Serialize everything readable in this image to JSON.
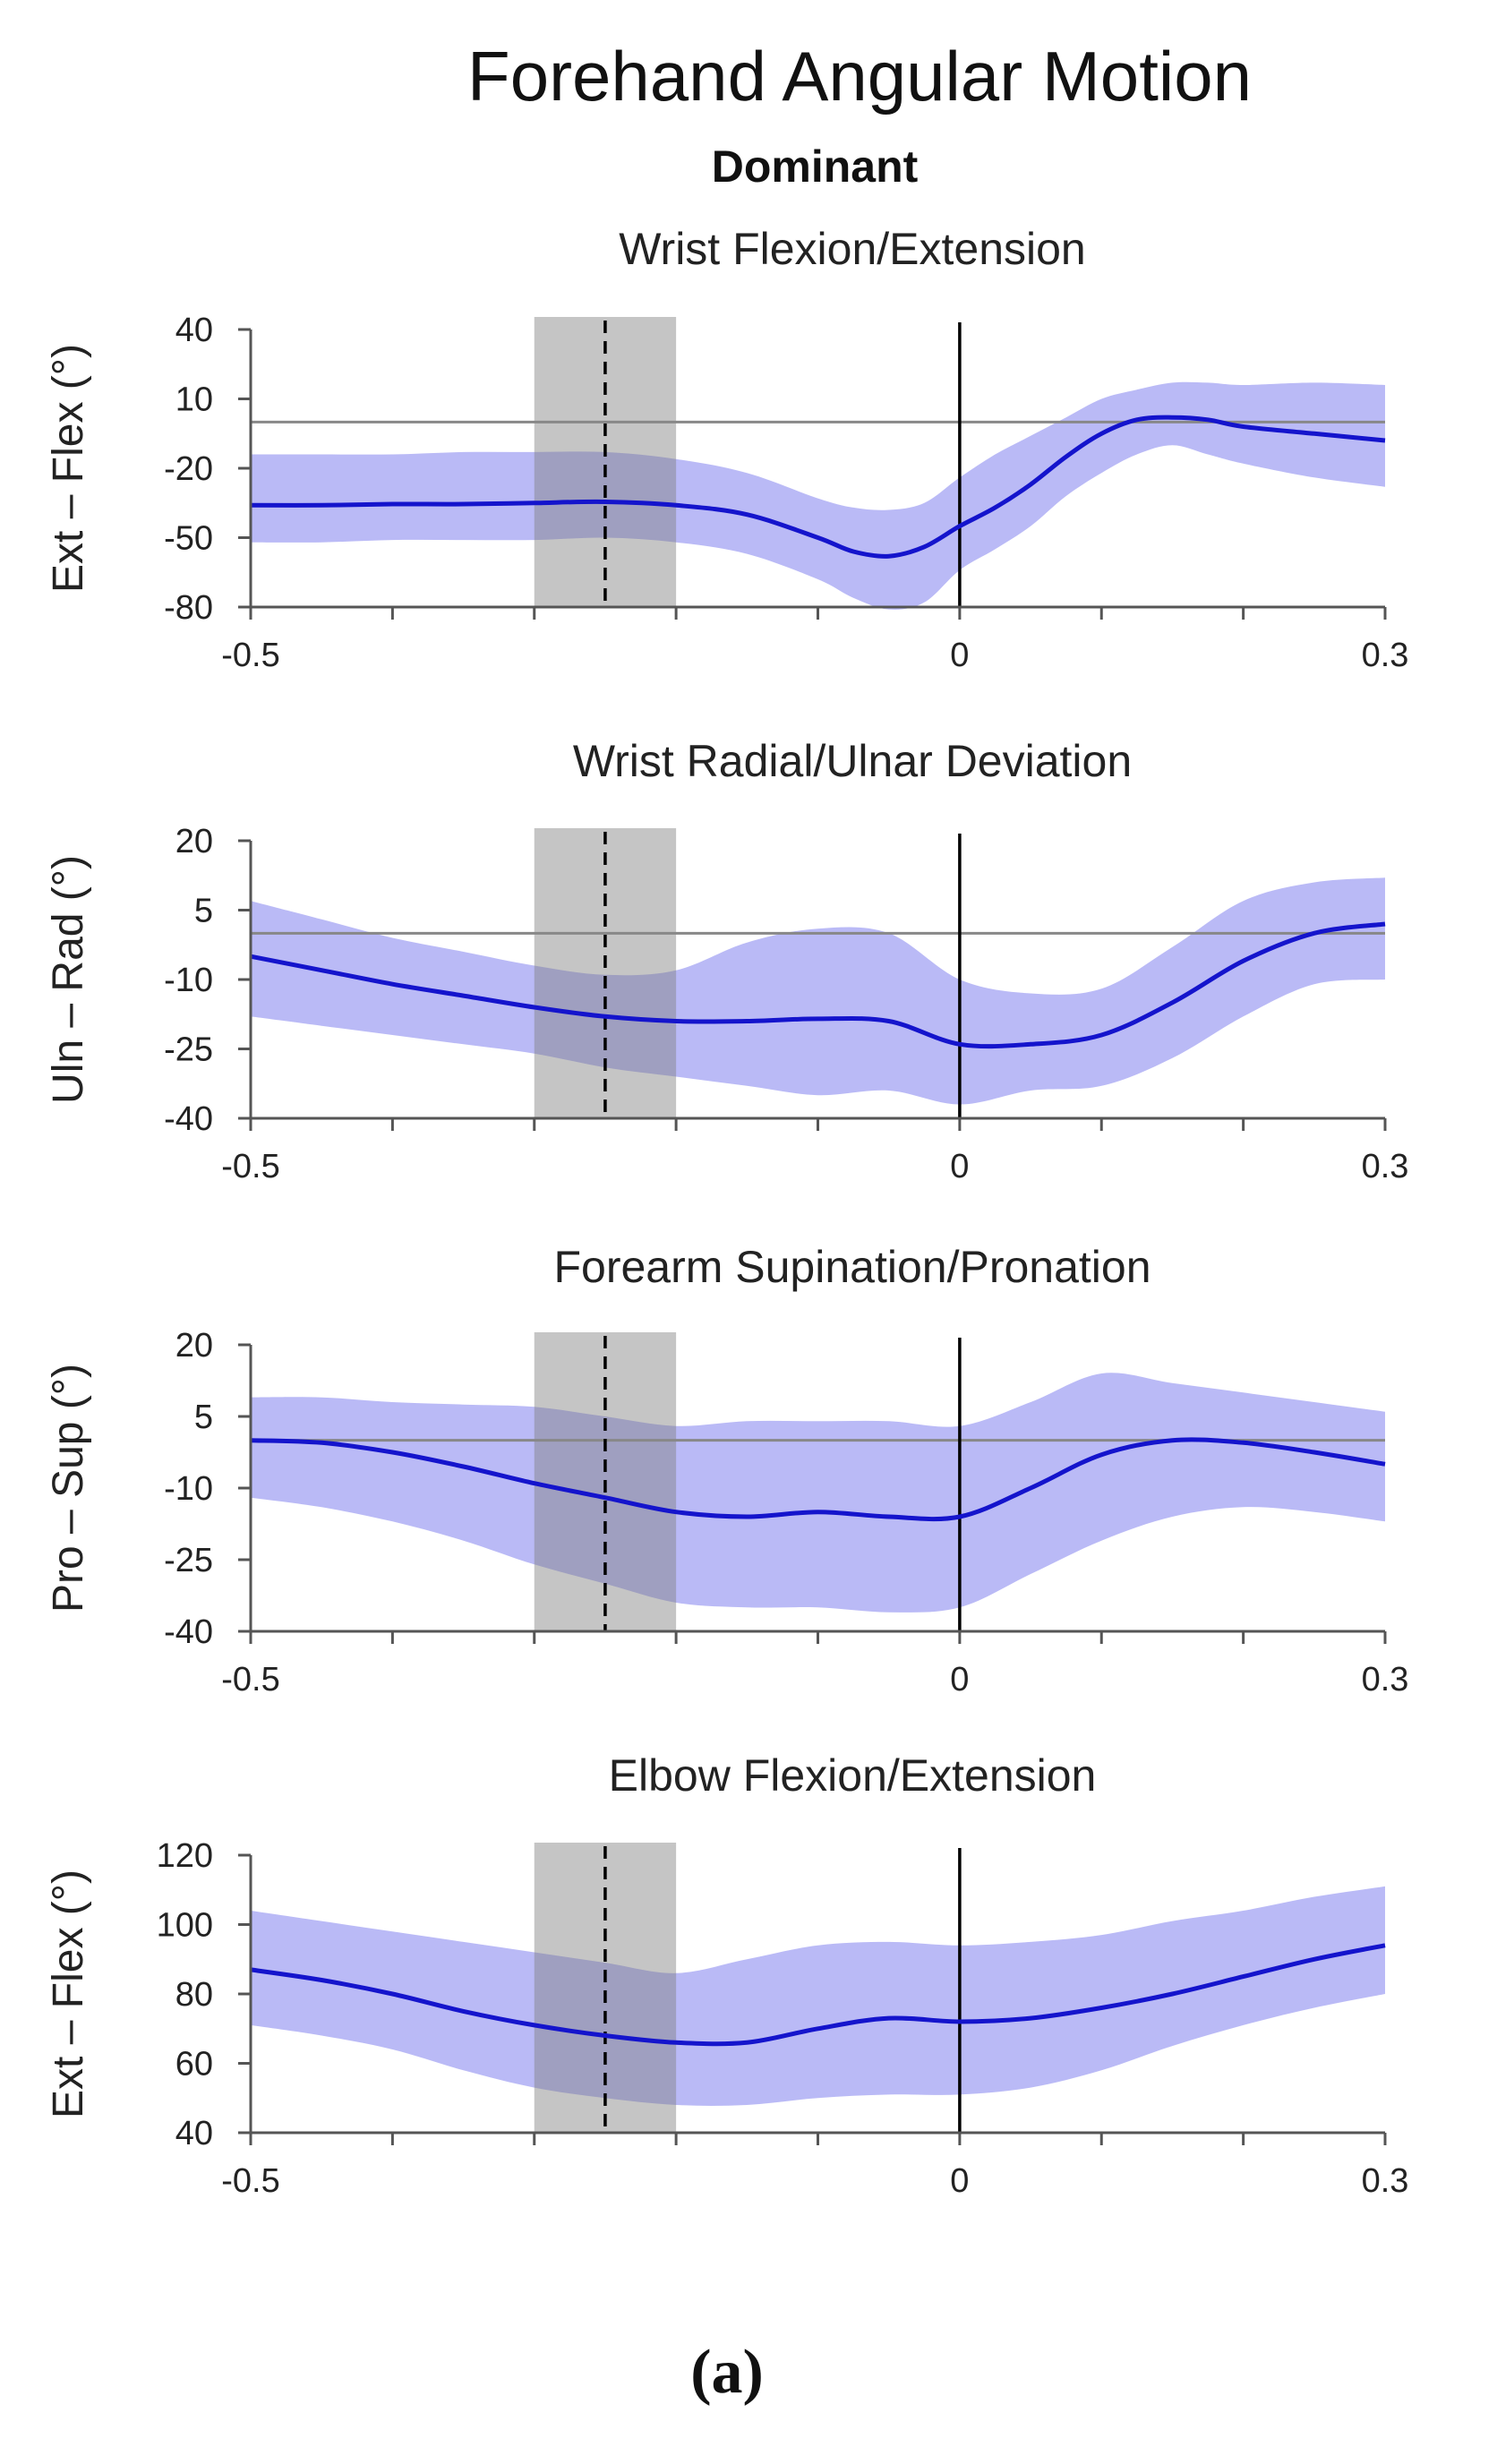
{
  "figure": {
    "title": "Forehand Angular Motion",
    "subtitle": "Dominant",
    "caption": "(a)"
  },
  "colors": {
    "band": "#b3b3f5",
    "line": "#1414cc",
    "shade": "#7f7f7f",
    "axis": "#555555",
    "zero": "#000000",
    "ref": "#888888"
  },
  "chart_data": [
    {
      "type": "line",
      "title": "Wrist Flexion/Extension",
      "xlabel": "",
      "ylabel": "Ext – Flex (°)",
      "xlim": [
        -0.5,
        0.3
      ],
      "ylim": [
        -80,
        40
      ],
      "xticks": [
        -0.5,
        0,
        0.3
      ],
      "xtick_labels": [
        "-0.5",
        "0",
        "0.3"
      ],
      "yticks": [
        40,
        10,
        -20,
        -50,
        -80
      ],
      "ytick_labels": [
        "40",
        "10",
        "-20",
        "-50",
        "-80"
      ],
      "shaded_region": [
        -0.3,
        -0.2
      ],
      "dashed_line_x": -0.25,
      "zero_line_x": 0,
      "reference_y": 0,
      "x": [
        -0.5,
        -0.45,
        -0.4,
        -0.35,
        -0.3,
        -0.25,
        -0.2,
        -0.15,
        -0.1,
        -0.075,
        -0.05,
        -0.025,
        0,
        0.025,
        0.05,
        0.075,
        0.1,
        0.125,
        0.15,
        0.175,
        0.2,
        0.25,
        0.3
      ],
      "mean": [
        -36,
        -36,
        -35.5,
        -35.5,
        -35,
        -34.5,
        -36,
        -40,
        -50,
        -56,
        -58,
        -54,
        -45,
        -37,
        -27,
        -15,
        -5,
        1,
        2,
        1,
        -2,
        -5,
        -8
      ],
      "lower": [
        -52,
        -52,
        -51,
        -51,
        -51,
        -50,
        -52,
        -57,
        -68,
        -76,
        -81,
        -78,
        -64,
        -55,
        -45,
        -32,
        -22,
        -14,
        -10,
        -14,
        -18,
        -24,
        -28
      ],
      "upper": [
        -14,
        -14,
        -14,
        -13,
        -13,
        -13,
        -16,
        -22,
        -33,
        -37,
        -38,
        -35,
        -24,
        -14,
        -6,
        2,
        10,
        14,
        17,
        17,
        16,
        17,
        16
      ]
    },
    {
      "type": "line",
      "title": "Wrist Radial/Ulnar Deviation",
      "xlabel": "",
      "ylabel": "Uln – Rad (°)",
      "xlim": [
        -0.5,
        0.3
      ],
      "ylim": [
        -40,
        20
      ],
      "xticks": [
        -0.5,
        0,
        0.3
      ],
      "xtick_labels": [
        "-0.5",
        "0",
        "0.3"
      ],
      "yticks": [
        20,
        5,
        -10,
        -25,
        -40
      ],
      "ytick_labels": [
        "20",
        "5",
        "-10",
        "-25",
        "-40"
      ],
      "shaded_region": [
        -0.3,
        -0.2
      ],
      "dashed_line_x": -0.25,
      "zero_line_x": 0,
      "reference_y": 0,
      "x": [
        -0.5,
        -0.45,
        -0.4,
        -0.35,
        -0.3,
        -0.25,
        -0.2,
        -0.15,
        -0.1,
        -0.05,
        0,
        0.05,
        0.1,
        0.15,
        0.2,
        0.25,
        0.3
      ],
      "mean": [
        -5,
        -8,
        -11,
        -13.5,
        -16,
        -18,
        -19,
        -19,
        -18.5,
        -19,
        -24,
        -24,
        -22,
        -15,
        -6,
        0,
        2
      ],
      "lower": [
        -18,
        -20,
        -22,
        -24,
        -26,
        -29,
        -31,
        -33,
        -35,
        -34,
        -37,
        -34,
        -33,
        -27,
        -18,
        -11,
        -10
      ],
      "upper": [
        7,
        3,
        -1,
        -4,
        -7,
        -9,
        -8,
        -2,
        1,
        0,
        -10,
        -13,
        -12,
        -3,
        7,
        11,
        12
      ]
    },
    {
      "type": "line",
      "title": "Forearm Supination/Pronation",
      "xlabel": "",
      "ylabel": "Pro – Sup (°)",
      "xlim": [
        -0.5,
        0.3
      ],
      "ylim": [
        -40,
        20
      ],
      "xticks": [
        -0.5,
        0,
        0.3
      ],
      "xtick_labels": [
        "-0.5",
        "0",
        "0.3"
      ],
      "yticks": [
        20,
        5,
        -10,
        -25,
        -40
      ],
      "ytick_labels": [
        "20",
        "5",
        "-10",
        "-25",
        "-40"
      ],
      "shaded_region": [
        -0.3,
        -0.2
      ],
      "dashed_line_x": -0.25,
      "zero_line_x": 0,
      "reference_y": 0,
      "x": [
        -0.5,
        -0.45,
        -0.4,
        -0.35,
        -0.3,
        -0.25,
        -0.2,
        -0.15,
        -0.1,
        -0.05,
        0,
        0.05,
        0.1,
        0.15,
        0.2,
        0.25,
        0.3
      ],
      "mean": [
        0,
        -0.5,
        -2.5,
        -5.5,
        -9,
        -12,
        -15,
        -16,
        -15,
        -16,
        -16,
        -10,
        -3,
        0,
        -0.5,
        -2.5,
        -5
      ],
      "lower": [
        -12,
        -14,
        -17,
        -21,
        -26,
        -30,
        -34,
        -35,
        -35,
        -36,
        -35,
        -28,
        -21,
        -16,
        -14,
        -15,
        -17
      ],
      "upper": [
        9,
        9,
        8,
        7.5,
        7,
        5,
        3,
        4,
        4,
        4,
        3,
        8,
        14,
        12,
        10,
        8,
        6
      ]
    },
    {
      "type": "line",
      "title": "Elbow Flexion/Extension",
      "xlabel": "",
      "ylabel": "Ext – Flex (°)",
      "xlim": [
        -0.5,
        0.3
      ],
      "ylim": [
        40,
        120
      ],
      "xticks": [
        -0.5,
        0,
        0.3
      ],
      "xtick_labels": [
        "-0.5",
        "0",
        "0.3"
      ],
      "yticks": [
        120,
        100,
        80,
        60,
        40
      ],
      "ytick_labels": [
        "120",
        "100",
        "80",
        "60",
        "40"
      ],
      "shaded_region": [
        -0.3,
        -0.2
      ],
      "dashed_line_x": -0.25,
      "zero_line_x": 0,
      "reference_y": null,
      "x": [
        -0.5,
        -0.45,
        -0.4,
        -0.35,
        -0.3,
        -0.25,
        -0.2,
        -0.15,
        -0.1,
        -0.05,
        0,
        0.05,
        0.1,
        0.15,
        0.2,
        0.25,
        0.3
      ],
      "mean": [
        87,
        84,
        80,
        75,
        71,
        68,
        66,
        66,
        70,
        73,
        72,
        73,
        76,
        80,
        85,
        90,
        94
      ],
      "lower": [
        71,
        68,
        64,
        58,
        53,
        50,
        48,
        48,
        50,
        51,
        51,
        53,
        58,
        65,
        71,
        76,
        80
      ],
      "upper": [
        104,
        101,
        98,
        95,
        92,
        89,
        86,
        90,
        94,
        95,
        94,
        95,
        97,
        101,
        104,
        108,
        111
      ]
    }
  ]
}
